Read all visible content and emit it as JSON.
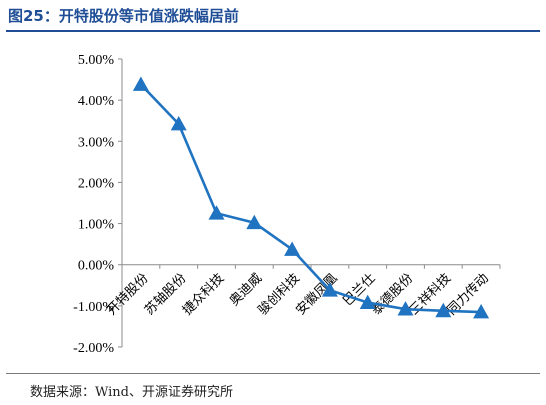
{
  "title": "图25：开特股份等市值涨跌幅居前",
  "source": "数据来源：Wind、开源证券研究所",
  "colors": {
    "line": "#1f73c0",
    "marker": "#1f73c0",
    "title": "#1f4e96"
  },
  "chart_data": {
    "type": "line",
    "title": "",
    "xlabel": "",
    "ylabel": "",
    "ylim": [
      -2,
      5
    ],
    "y_ticks": [
      "5.00%",
      "4.00%",
      "3.00%",
      "2.00%",
      "1.00%",
      "0.00%",
      "-1.00%",
      "-2.00%"
    ],
    "y_tick_values": [
      5,
      4,
      3,
      2,
      1,
      0,
      -1,
      -2
    ],
    "grid": false,
    "legend": "none",
    "marker": "triangle",
    "categories": [
      "开特股份",
      "苏轴股份",
      "捷众科技",
      "奥迪威",
      "骏创科技",
      "安徽凤凰",
      "巴兰仕",
      "泰德股份",
      "三祥科技",
      "同力传动"
    ],
    "series": [
      {
        "values": [
          4.38,
          3.42,
          1.25,
          1.02,
          0.37,
          -0.62,
          -0.92,
          -1.08,
          -1.12,
          -1.15
        ]
      }
    ]
  }
}
